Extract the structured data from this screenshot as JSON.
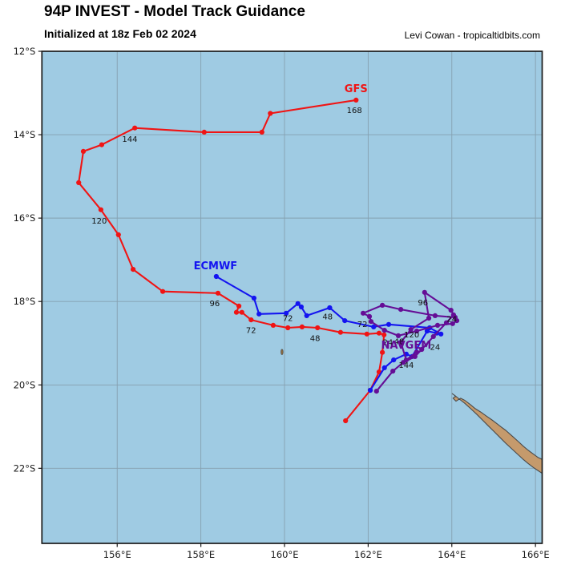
{
  "header": {
    "title": "94P INVEST - Model Track Guidance",
    "subtitle": "Initialized at 18z Feb 02 2024",
    "credit": "Levi Cowan - tropicaltidbits.com"
  },
  "chart_data": {
    "type": "line",
    "subtype": "tropical-cyclone-model-track-map",
    "grid": true,
    "x_axis": {
      "range": [
        154.2,
        166.16
      ],
      "ticks": [
        156,
        158,
        160,
        162,
        164,
        166
      ],
      "tick_labels": [
        "156°E",
        "158°E",
        "160°E",
        "162°E",
        "164°E",
        "166°E"
      ]
    },
    "y_axis": {
      "range": [
        12,
        23.8
      ],
      "ticks": [
        12,
        14,
        16,
        18,
        20,
        22
      ],
      "tick_labels": [
        "12°S",
        "14°S",
        "16°S",
        "18°S",
        "20°S",
        "22°S"
      ]
    },
    "colors": {
      "ocean": "#9fcbe3",
      "land": "#c59a6c",
      "coast": "#4a4a4a",
      "grid": "#85a0b0",
      "border": "#1a1a1a",
      "tick_text": "#1a1a1a",
      "hour_label": "#111111",
      "gfs": "#f01414",
      "ecmwf": "#1414f0",
      "navgem": "#650d96"
    },
    "series": [
      {
        "name": "GFS",
        "color_key": "gfs",
        "name_label": {
          "lon": 161.71,
          "lat": 12.9
        },
        "points": [
          [
            161.46,
            20.86
          ],
          [
            162.05,
            20.13
          ],
          [
            162.26,
            19.69
          ],
          [
            162.34,
            19.22
          ],
          [
            162.38,
            18.8
          ],
          [
            162.26,
            18.76
          ],
          [
            161.97,
            18.78
          ],
          [
            161.34,
            18.74
          ],
          [
            160.79,
            18.63
          ],
          [
            160.42,
            18.61
          ],
          [
            160.08,
            18.63
          ],
          [
            159.73,
            18.57
          ],
          [
            159.2,
            18.44
          ],
          [
            158.98,
            18.26
          ],
          [
            158.85,
            18.26
          ],
          [
            158.91,
            18.11
          ],
          [
            158.41,
            17.8
          ],
          [
            157.09,
            17.76
          ],
          [
            156.38,
            17.23
          ],
          [
            156.03,
            16.4
          ],
          [
            155.61,
            15.8
          ],
          [
            155.08,
            15.15
          ],
          [
            155.19,
            14.4
          ],
          [
            155.63,
            14.24
          ],
          [
            156.42,
            13.84
          ],
          [
            158.08,
            13.94
          ],
          [
            159.46,
            13.94
          ],
          [
            159.66,
            13.49
          ],
          [
            161.71,
            13.17
          ]
        ],
        "hour_labels": [
          {
            "t": "24",
            "lon": 162.47,
            "lat": 18.98
          },
          {
            "t": "48",
            "lon": 160.73,
            "lat": 18.88
          },
          {
            "t": "72",
            "lon": 159.2,
            "lat": 18.69
          },
          {
            "t": "96",
            "lon": 158.33,
            "lat": 18.05
          },
          {
            "t": "120",
            "lon": 155.57,
            "lat": 16.07
          },
          {
            "t": "144",
            "lon": 156.3,
            "lat": 14.11
          },
          {
            "t": "168",
            "lon": 161.67,
            "lat": 13.41
          }
        ]
      },
      {
        "name": "ECMWF",
        "color_key": "ecmwf",
        "name_label": {
          "lon": 158.35,
          "lat": 17.15
        },
        "points": [
          [
            162.05,
            20.13
          ],
          [
            162.39,
            19.59
          ],
          [
            162.61,
            19.4
          ],
          [
            162.91,
            19.26
          ],
          [
            163.05,
            19.32
          ],
          [
            163.41,
            18.71
          ],
          [
            163.64,
            18.76
          ],
          [
            163.74,
            18.78
          ],
          [
            163.47,
            18.63
          ],
          [
            162.49,
            18.55
          ],
          [
            162.13,
            18.61
          ],
          [
            161.44,
            18.46
          ],
          [
            161.08,
            18.15
          ],
          [
            160.53,
            18.34
          ],
          [
            160.4,
            18.13
          ],
          [
            160.32,
            18.05
          ],
          [
            160.04,
            18.28
          ],
          [
            159.39,
            18.3
          ],
          [
            159.27,
            17.92
          ],
          [
            158.37,
            17.4
          ]
        ],
        "hour_labels": [
          {
            "t": "24",
            "lon": 163.6,
            "lat": 19.09
          },
          {
            "t": "48",
            "lon": 161.03,
            "lat": 18.36
          },
          {
            "t": "72",
            "lon": 160.08,
            "lat": 18.4
          }
        ]
      },
      {
        "name": "NAVGEM",
        "color_key": "navgem",
        "name_label": {
          "lon": 162.91,
          "lat": 19.05
        },
        "points": [
          [
            162.2,
            20.15
          ],
          [
            162.59,
            19.67
          ],
          [
            162.84,
            19.46
          ],
          [
            163.12,
            19.32
          ],
          [
            163.28,
            19.15
          ],
          [
            163.56,
            18.84
          ],
          [
            163.87,
            18.51
          ],
          [
            164.04,
            18.32
          ],
          [
            164.12,
            18.46
          ],
          [
            164.02,
            18.53
          ],
          [
            163.66,
            18.57
          ],
          [
            163.16,
            18.71
          ],
          [
            162.72,
            18.82
          ],
          [
            162.39,
            18.69
          ],
          [
            162.07,
            18.48
          ],
          [
            162.03,
            18.36
          ],
          [
            161.88,
            18.28
          ],
          [
            162.34,
            18.09
          ],
          [
            162.78,
            18.19
          ],
          [
            163.6,
            18.34
          ],
          [
            164.08,
            18.38
          ],
          [
            163.98,
            18.21
          ],
          [
            163.35,
            17.78
          ],
          [
            163.45,
            18.4
          ],
          [
            163.02,
            18.67
          ],
          [
            162.78,
            18.98
          ],
          [
            162.91,
            19.4
          ],
          [
            163.16,
            19.21
          ]
        ],
        "hour_labels": [
          {
            "t": "24",
            "lon": 164.0,
            "lat": 18.42
          },
          {
            "t": "48",
            "lon": 162.74,
            "lat": 18.96
          },
          {
            "t": "72",
            "lon": 161.86,
            "lat": 18.55
          },
          {
            "t": "96",
            "lon": 163.31,
            "lat": 18.03
          },
          {
            "t": "120",
            "lon": 163.04,
            "lat": 18.8
          },
          {
            "t": "144",
            "lon": 162.91,
            "lat": 19.53
          }
        ]
      }
    ],
    "land": {
      "new_caledonia": [
        [
          164.01,
          20.21
        ],
        [
          164.09,
          20.27
        ],
        [
          164.03,
          20.32
        ],
        [
          164.1,
          20.39
        ],
        [
          164.21,
          20.32
        ],
        [
          164.31,
          20.37
        ],
        [
          164.44,
          20.47
        ],
        [
          164.56,
          20.57
        ],
        [
          164.69,
          20.65
        ],
        [
          164.83,
          20.75
        ],
        [
          164.96,
          20.84
        ],
        [
          165.08,
          20.93
        ],
        [
          165.18,
          21.01
        ],
        [
          165.29,
          21.09
        ],
        [
          165.38,
          21.17
        ],
        [
          165.48,
          21.26
        ],
        [
          165.59,
          21.36
        ],
        [
          165.71,
          21.47
        ],
        [
          165.83,
          21.57
        ],
        [
          165.95,
          21.66
        ],
        [
          166.06,
          21.74
        ],
        [
          166.25,
          21.83
        ],
        [
          166.25,
          22.18
        ],
        [
          166.07,
          22.06
        ],
        [
          165.95,
          21.98
        ],
        [
          165.83,
          21.89
        ],
        [
          165.7,
          21.78
        ],
        [
          165.57,
          21.66
        ],
        [
          165.43,
          21.53
        ],
        [
          165.29,
          21.4
        ],
        [
          165.15,
          21.26
        ],
        [
          165.01,
          21.12
        ],
        [
          164.87,
          20.98
        ],
        [
          164.73,
          20.84
        ],
        [
          164.59,
          20.7
        ],
        [
          164.45,
          20.57
        ],
        [
          164.31,
          20.44
        ],
        [
          164.18,
          20.34
        ],
        [
          164.08,
          20.26
        ]
      ],
      "islet": {
        "lon": 159.94,
        "lat": 19.21
      }
    }
  }
}
